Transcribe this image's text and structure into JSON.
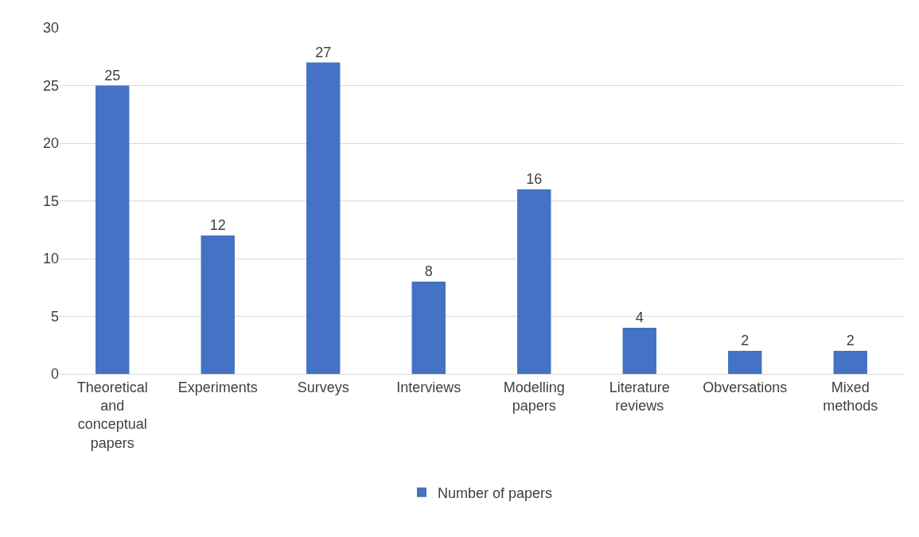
{
  "chart_data": {
    "type": "bar",
    "categories": [
      "Theoretical and conceptual papers",
      "Experiments",
      "Surveys",
      "Interviews",
      "Modelling papers",
      "Literature reviews",
      "Obversations",
      "Mixed methods"
    ],
    "series": [
      {
        "name": "Number of papers",
        "color": "#4472c4",
        "values": [
          25,
          12,
          27,
          8,
          16,
          4,
          2,
          2
        ]
      }
    ],
    "ylim": [
      0,
      30
    ],
    "yticks": [
      0,
      5,
      10,
      15,
      20,
      25,
      30
    ],
    "grid": "y",
    "legend": "bottom",
    "data_labels": true
  }
}
